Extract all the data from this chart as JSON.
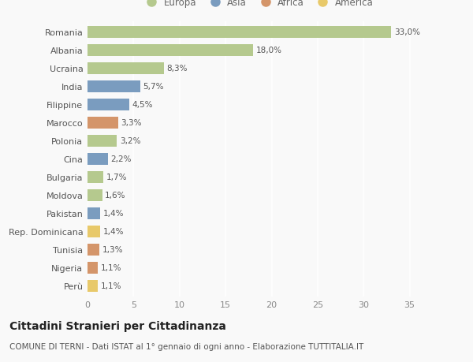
{
  "countries": [
    "Romania",
    "Albania",
    "Ucraina",
    "India",
    "Filippine",
    "Marocco",
    "Polonia",
    "Cina",
    "Bulgaria",
    "Moldova",
    "Pakistan",
    "Rep. Dominicana",
    "Tunisia",
    "Nigeria",
    "Perù"
  ],
  "values": [
    33.0,
    18.0,
    8.3,
    5.7,
    4.5,
    3.3,
    3.2,
    2.2,
    1.7,
    1.6,
    1.4,
    1.4,
    1.3,
    1.1,
    1.1
  ],
  "labels": [
    "33,0%",
    "18,0%",
    "8,3%",
    "5,7%",
    "4,5%",
    "3,3%",
    "3,2%",
    "2,2%",
    "1,7%",
    "1,6%",
    "1,4%",
    "1,4%",
    "1,3%",
    "1,1%",
    "1,1%"
  ],
  "continents": [
    "Europa",
    "Europa",
    "Europa",
    "Asia",
    "Asia",
    "Africa",
    "Europa",
    "Asia",
    "Europa",
    "Europa",
    "Asia",
    "America",
    "Africa",
    "Africa",
    "America"
  ],
  "colors": {
    "Europa": "#b5c98e",
    "Asia": "#7a9cbf",
    "Africa": "#d4956a",
    "America": "#e8c96a"
  },
  "legend_order": [
    "Europa",
    "Asia",
    "Africa",
    "America"
  ],
  "legend_colors": [
    "#b5c98e",
    "#7a9cbf",
    "#d4956a",
    "#e8c96a"
  ],
  "title": "Cittadini Stranieri per Cittadinanza",
  "subtitle": "COMUNE DI TERNI - Dati ISTAT al 1° gennaio di ogni anno - Elaborazione TUTTITALIA.IT",
  "xlim": [
    0,
    37
  ],
  "xticks": [
    0,
    5,
    10,
    15,
    20,
    25,
    30,
    35
  ],
  "background_color": "#f9f9f9",
  "grid_color": "#e8e8e8",
  "bar_height": 0.65,
  "title_fontsize": 10,
  "subtitle_fontsize": 7.5,
  "tick_fontsize": 8,
  "label_fontsize": 7.5,
  "legend_fontsize": 8.5
}
